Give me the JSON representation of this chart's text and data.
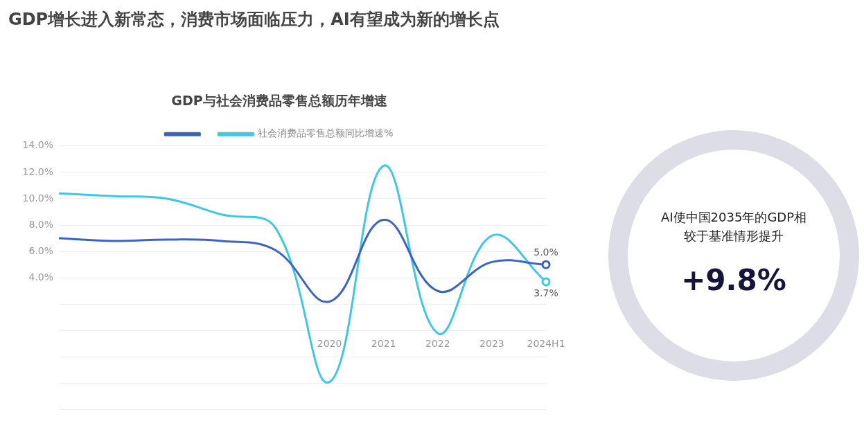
{
  "chart_data": [
    {
      "type": "line",
      "title": "GDP增长进入新常态，消费市场面临压力，AI有望成为新的增长点",
      "subtitle": "GDP与社会消费品零售总额历年增速",
      "categories": [
        null,
        null,
        null,
        null,
        null,
        "2020",
        "2021",
        "2022",
        "2023",
        "2024H1"
      ],
      "series": [
        {
          "color": "#3b63c4",
          "values": [
            7.0,
            6.8,
            6.9,
            6.8,
            6.1,
            2.2,
            8.4,
            3.0,
            5.2,
            5.0
          ],
          "value_labels": [
            null,
            null,
            null,
            null,
            null,
            null,
            null,
            null,
            null,
            "5.0%"
          ]
        },
        {
          "name": "社会消费品零售总额同比增速%",
          "color": "#3ec8e6",
          "values": [
            10.4,
            10.2,
            10.0,
            8.8,
            7.8,
            -3.9,
            12.5,
            -0.2,
            7.2,
            3.7
          ],
          "value_labels": [
            null,
            null,
            null,
            null,
            null,
            null,
            null,
            null,
            null,
            "3.7%"
          ]
        }
      ],
      "ylim": [
        -6,
        14
      ],
      "yticks": [
        {
          "value": -6,
          "label": null
        },
        {
          "value": -4,
          "label": null
        },
        {
          "value": -2,
          "label": null
        },
        {
          "value": 0,
          "label": null
        },
        {
          "value": 2,
          "label": null
        },
        {
          "value": 4,
          "label": "4.0%"
        },
        {
          "value": 6,
          "label": "6.0%"
        },
        {
          "value": 8,
          "label": "8.0%"
        },
        {
          "value": 10,
          "label": "10.0%"
        },
        {
          "value": 12,
          "label": "12.0%"
        },
        {
          "value": 14,
          "label": "14.0%"
        }
      ],
      "grid": "y",
      "legend": "top",
      "line_style": "solid"
    },
    {
      "type": "other",
      "title": "AI使中国2035年的GDP相较于基准情形提升",
      "annotations": [
        "+9.8%"
      ]
    }
  ]
}
